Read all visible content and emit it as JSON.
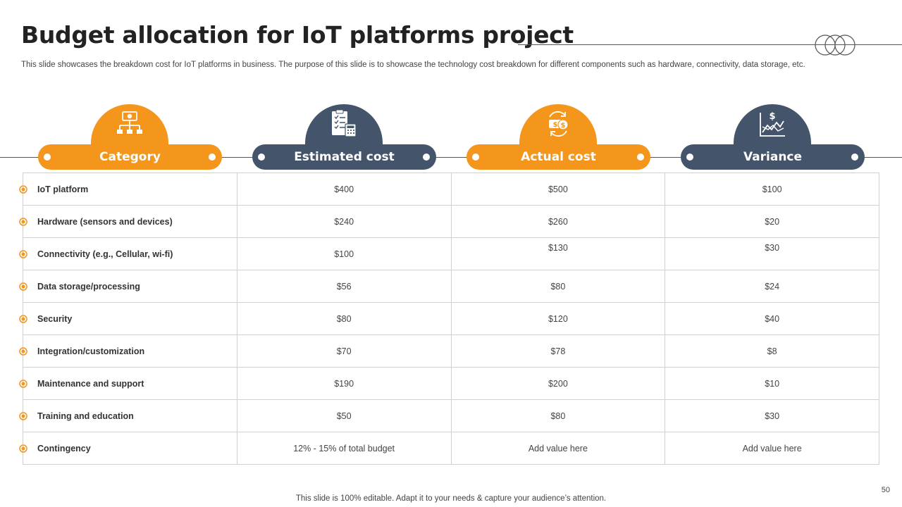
{
  "title": "Budget allocation for IoT platforms project",
  "subtitle": "This slide showcases the breakdown cost for IoT platforms in business. The purpose of this slide is to showcase the technology cost breakdown for different components such as hardware, connectivity, data storage, etc.",
  "colors": {
    "orange": "#F3961B",
    "navy": "#44546A"
  },
  "columns": [
    {
      "label": "Category",
      "icon": "org-chart-money-icon"
    },
    {
      "label": "Estimated cost",
      "icon": "checklist-calculator-icon"
    },
    {
      "label": "Actual cost",
      "icon": "money-exchange-icon"
    },
    {
      "label": "Variance",
      "icon": "dollar-growth-chart-icon"
    }
  ],
  "rows": [
    {
      "category": "IoT platform",
      "estimated": "$400",
      "actual": "$500",
      "variance": "$100"
    },
    {
      "category": "Hardware (sensors and devices)",
      "estimated": "$240",
      "actual": "$260",
      "variance": "$20"
    },
    {
      "category": "Connectivity (e.g., Cellular, wi-fi)",
      "estimated": "$100",
      "actual": "$130",
      "variance": "$30"
    },
    {
      "category": "Data storage/processing",
      "estimated": "$56",
      "actual": "$80",
      "variance": "$24"
    },
    {
      "category": "Security",
      "estimated": "$80",
      "actual": "$120",
      "variance": "$40"
    },
    {
      "category": "Integration/customization",
      "estimated": "$70",
      "actual": "$78",
      "variance": "$8"
    },
    {
      "category": "Maintenance and support",
      "estimated": "$190",
      "actual": "$200",
      "variance": "$10"
    },
    {
      "category": "Training and education",
      "estimated": "$50",
      "actual": "$80",
      "variance": "$30"
    },
    {
      "category": "Contingency",
      "estimated": "12% - 15% of total budget",
      "actual": "Add value here",
      "variance": "Add value here"
    }
  ],
  "footer": "This slide is 100% editable. Adapt it to your needs & capture your audience’s attention.",
  "page_number": "50"
}
